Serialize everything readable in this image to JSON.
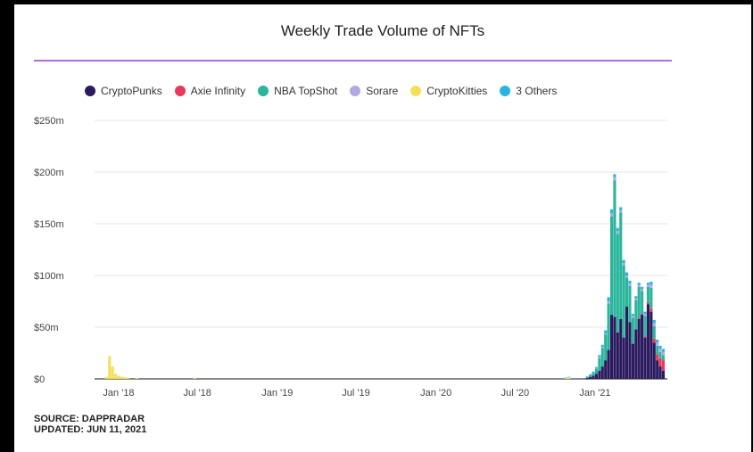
{
  "chart_data": {
    "type": "bar",
    "stacked": true,
    "title": "Weekly Trade Volume of NFTs",
    "y_ticks": [
      "$0",
      "$50m",
      "$100m",
      "$150m",
      "$200m",
      "$250m"
    ],
    "ylim": [
      0,
      250
    ],
    "x_ticks": [
      "Jan '18",
      "Jul '18",
      "Jan '19",
      "Jul '19",
      "Jan '20",
      "Jul '20",
      "Jan '21"
    ],
    "grid": true,
    "legend_placement": "top",
    "series": [
      {
        "name": "CryptoPunks",
        "color": "#2a1a5e"
      },
      {
        "name": "Axie Infinity",
        "color": "#e8385e"
      },
      {
        "name": "NBA TopShot",
        "color": "#2bb59a"
      },
      {
        "name": "Sorare",
        "color": "#b4a8e0"
      },
      {
        "name": "CryptoKitties",
        "color": "#f5df5a"
      },
      {
        "name": "3 Others",
        "color": "#2ab4e0"
      }
    ],
    "weeks_2021": [
      {
        "week": "2020-12-14",
        "CryptoPunks": 1,
        "Axie Infinity": 0,
        "NBA TopShot": 1,
        "Sorare": 0,
        "CryptoKitties": 0,
        "3 Others": 0.5
      },
      {
        "week": "2020-12-21",
        "CryptoPunks": 2,
        "Axie Infinity": 0,
        "NBA TopShot": 2,
        "Sorare": 0,
        "CryptoKitties": 0,
        "3 Others": 0.5
      },
      {
        "week": "2020-12-28",
        "CryptoPunks": 3,
        "Axie Infinity": 0,
        "NBA TopShot": 3,
        "Sorare": 0,
        "CryptoKitties": 0,
        "3 Others": 1
      },
      {
        "week": "2021-01-04",
        "CryptoPunks": 5,
        "Axie Infinity": 0,
        "NBA TopShot": 5,
        "Sorare": 0.5,
        "CryptoKitties": 0,
        "3 Others": 1
      },
      {
        "week": "2021-01-11",
        "CryptoPunks": 8,
        "Axie Infinity": 0,
        "NBA TopShot": 12,
        "Sorare": 1,
        "CryptoKitties": 0,
        "3 Others": 2
      },
      {
        "week": "2021-01-18",
        "CryptoPunks": 12,
        "Axie Infinity": 0,
        "NBA TopShot": 18,
        "Sorare": 1,
        "CryptoKitties": 0,
        "3 Others": 2
      },
      {
        "week": "2021-01-25",
        "CryptoPunks": 18,
        "Axie Infinity": 0,
        "NBA TopShot": 25,
        "Sorare": 1,
        "CryptoKitties": 0,
        "3 Others": 3
      },
      {
        "week": "2021-02-01",
        "CryptoPunks": 28,
        "Axie Infinity": 0,
        "NBA TopShot": 45,
        "Sorare": 2,
        "CryptoKitties": 0,
        "3 Others": 4
      },
      {
        "week": "2021-02-08",
        "CryptoPunks": 62,
        "Axie Infinity": 0,
        "NBA TopShot": 95,
        "Sorare": 3,
        "CryptoKitties": 0,
        "3 Others": 4
      },
      {
        "week": "2021-02-15",
        "CryptoPunks": 60,
        "Axie Infinity": 0,
        "NBA TopShot": 132,
        "Sorare": 3,
        "CryptoKitties": 0,
        "3 Others": 3
      },
      {
        "week": "2021-02-22",
        "CryptoPunks": 45,
        "Axie Infinity": 0,
        "NBA TopShot": 95,
        "Sorare": 3,
        "CryptoKitties": 0,
        "3 Others": 3
      },
      {
        "week": "2021-03-01",
        "CryptoPunks": 58,
        "Axie Infinity": 0,
        "NBA TopShot": 103,
        "Sorare": 2,
        "CryptoKitties": 0,
        "3 Others": 3
      },
      {
        "week": "2021-03-08",
        "CryptoPunks": 40,
        "Axie Infinity": 0,
        "NBA TopShot": 70,
        "Sorare": 2,
        "CryptoKitties": 0,
        "3 Others": 3
      },
      {
        "week": "2021-03-15",
        "CryptoPunks": 70,
        "Axie Infinity": 0,
        "NBA TopShot": 28,
        "Sorare": 2,
        "CryptoKitties": 0,
        "3 Others": 3
      },
      {
        "week": "2021-03-22",
        "CryptoPunks": 55,
        "Axie Infinity": 0,
        "NBA TopShot": 35,
        "Sorare": 2,
        "CryptoKitties": 0,
        "3 Others": 3
      },
      {
        "week": "2021-03-29",
        "CryptoPunks": 34,
        "Axie Infinity": 0,
        "NBA TopShot": 25,
        "Sorare": 2,
        "CryptoKitties": 0,
        "3 Others": 2
      },
      {
        "week": "2021-04-05",
        "CryptoPunks": 48,
        "Axie Infinity": 0,
        "NBA TopShot": 28,
        "Sorare": 2,
        "CryptoKitties": 0,
        "3 Others": 2
      },
      {
        "week": "2021-04-12",
        "CryptoPunks": 58,
        "Axie Infinity": 1,
        "NBA TopShot": 30,
        "Sorare": 2,
        "CryptoKitties": 0,
        "3 Others": 2
      },
      {
        "week": "2021-04-19",
        "CryptoPunks": 62,
        "Axie Infinity": 1,
        "NBA TopShot": 22,
        "Sorare": 2,
        "CryptoKitties": 0,
        "3 Others": 2
      },
      {
        "week": "2021-04-26",
        "CryptoPunks": 40,
        "Axie Infinity": 1,
        "NBA TopShot": 20,
        "Sorare": 2,
        "CryptoKitties": 0,
        "3 Others": 2
      },
      {
        "week": "2021-05-03",
        "CryptoPunks": 72,
        "Axie Infinity": 2,
        "NBA TopShot": 15,
        "Sorare": 2,
        "CryptoKitties": 0,
        "3 Others": 2
      },
      {
        "week": "2021-05-10",
        "CryptoPunks": 65,
        "Axie Infinity": 3,
        "NBA TopShot": 20,
        "Sorare": 3,
        "CryptoKitties": 0,
        "3 Others": 3
      },
      {
        "week": "2021-05-17",
        "CryptoPunks": 35,
        "Axie Infinity": 4,
        "NBA TopShot": 12,
        "Sorare": 3,
        "CryptoKitties": 0,
        "3 Others": 3
      },
      {
        "week": "2021-05-24",
        "CryptoPunks": 18,
        "Axie Infinity": 6,
        "NBA TopShot": 8,
        "Sorare": 3,
        "CryptoKitties": 0,
        "3 Others": 3
      },
      {
        "week": "2021-05-31",
        "CryptoPunks": 12,
        "Axie Infinity": 8,
        "NBA TopShot": 6,
        "Sorare": 3,
        "CryptoKitties": 0,
        "3 Others": 3
      },
      {
        "week": "2021-06-07",
        "CryptoPunks": 8,
        "Axie Infinity": 10,
        "NBA TopShot": 5,
        "Sorare": 3,
        "CryptoKitties": 0,
        "3 Others": 3
      }
    ],
    "early_weeks": [
      {
        "week": "2017-12-04",
        "CryptoKitties": 2
      },
      {
        "week": "2017-12-11",
        "CryptoKitties": 22
      },
      {
        "week": "2017-12-18",
        "CryptoKitties": 12
      },
      {
        "week": "2017-12-25",
        "CryptoKitties": 5
      },
      {
        "week": "2018-01-01",
        "CryptoKitties": 3
      },
      {
        "week": "2018-01-08",
        "CryptoKitties": 2
      },
      {
        "week": "2018-01-15",
        "CryptoKitties": 1.5
      },
      {
        "week": "2018-01-22",
        "CryptoKitties": 1
      },
      {
        "week": "2018-02-12",
        "CryptoKitties": 0.8
      },
      {
        "week": "2018-06-25",
        "CryptoKitties": 0.6
      },
      {
        "week": "2020-10-26",
        "CryptoKitties": 0.8,
        "3 Others": 0.5
      },
      {
        "week": "2020-11-02",
        "CryptoKitties": 1.5,
        "3 Others": 0.5
      }
    ]
  },
  "footer": {
    "source": "SOURCE: DAPPRADAR",
    "updated": "UPDATED: JUN 11, 2021"
  }
}
